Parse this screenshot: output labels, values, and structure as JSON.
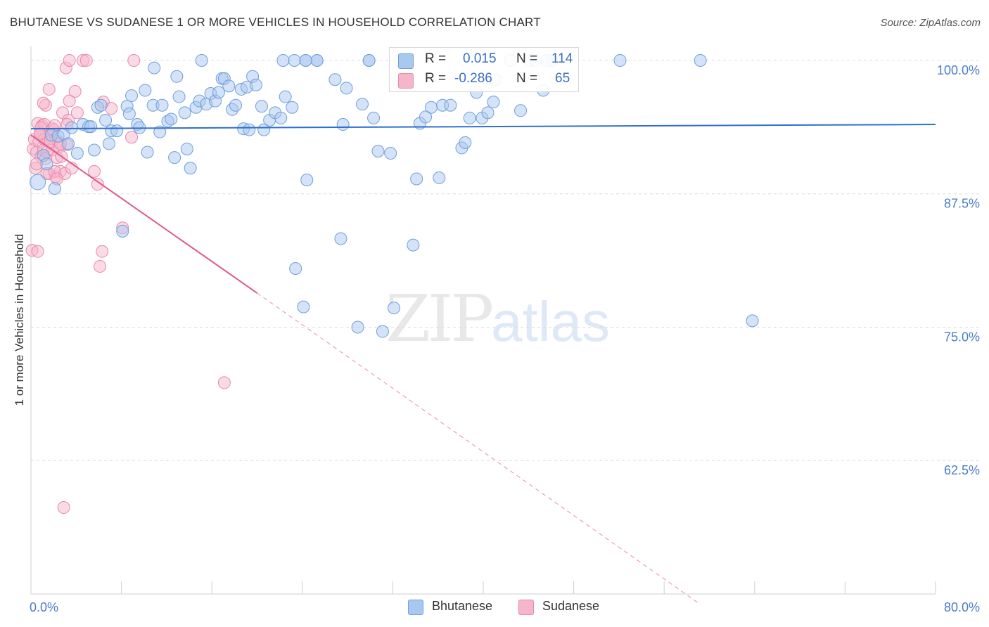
{
  "title": "BHUTANESE VS SUDANESE 1 OR MORE VEHICLES IN HOUSEHOLD CORRELATION CHART",
  "source": "Source: ZipAtlas.com",
  "watermark": {
    "zip": "ZIP",
    "atlas": "atlas"
  },
  "legend": {
    "rows": [
      {
        "r_label": "R =",
        "r_value": "0.015",
        "n_label": "N =",
        "n_value": "114",
        "color": "#a9c8f0"
      },
      {
        "r_label": "R =",
        "r_value": "-0.286",
        "n_label": "N =",
        "n_value": "65",
        "color": "#f5b6cb"
      }
    ]
  },
  "bottom_legend": [
    {
      "label": "Bhutanese",
      "color": "#a9c8f0"
    },
    {
      "label": "Sudanese",
      "color": "#f5b6cb"
    }
  ],
  "colors": {
    "blue_line": "#2f6fd0",
    "pink_line": "#e0588a",
    "blue_fill": "#a9c8f0",
    "pink_fill": "#f5b6cb",
    "grid": "#dcdcdc",
    "tick_label": "#4a7cc8"
  },
  "chart_data": {
    "type": "scatter",
    "title": "BHUTANESE VS SUDANESE 1 OR MORE VEHICLES IN HOUSEHOLD CORRELATION CHART",
    "xlabel": "",
    "ylabel": "1 or more Vehicles in Household",
    "xlim": [
      0,
      80
    ],
    "ylim": [
      50,
      102.5
    ],
    "x_tick_labels": [
      "0.0%",
      "80.0%"
    ],
    "y_ticks": [
      62.5,
      75.0,
      87.5,
      100.0
    ],
    "y_tick_labels": [
      "62.5%",
      "75.0%",
      "87.5%",
      "100.0%"
    ],
    "grid": true,
    "series": [
      {
        "name": "Bhutanese",
        "trend": {
          "x": [
            0,
            80
          ],
          "y": [
            93.6,
            94.0
          ],
          "style": "solid"
        },
        "points": [
          [
            0.6,
            88.6
          ],
          [
            1.1,
            91.1
          ],
          [
            1.4,
            90.3
          ],
          [
            1.8,
            93.0
          ],
          [
            2.1,
            88.0
          ],
          [
            2.4,
            92.9
          ],
          [
            2.9,
            93.1
          ],
          [
            3.3,
            92.2
          ],
          [
            3.6,
            93.7
          ],
          [
            4.1,
            91.3
          ],
          [
            4.6,
            94.0
          ],
          [
            5.1,
            93.8
          ],
          [
            5.3,
            93.8
          ],
          [
            5.6,
            91.6
          ],
          [
            5.9,
            95.6
          ],
          [
            6.2,
            95.8
          ],
          [
            6.6,
            94.4
          ],
          [
            6.9,
            92.2
          ],
          [
            7.1,
            93.4
          ],
          [
            7.6,
            93.4
          ],
          [
            8.1,
            84.0
          ],
          [
            8.5,
            95.7
          ],
          [
            8.7,
            95.0
          ],
          [
            8.9,
            96.7
          ],
          [
            9.4,
            94.0
          ],
          [
            9.6,
            93.7
          ],
          [
            10.3,
            91.4
          ],
          [
            10.1,
            97.2
          ],
          [
            10.8,
            95.8
          ],
          [
            10.9,
            99.3
          ],
          [
            11.4,
            93.3
          ],
          [
            11.6,
            95.8
          ],
          [
            12.1,
            94.3
          ],
          [
            12.4,
            94.5
          ],
          [
            12.7,
            90.9
          ],
          [
            12.9,
            98.5
          ],
          [
            13.1,
            96.6
          ],
          [
            13.6,
            95.1
          ],
          [
            13.8,
            91.7
          ],
          [
            14.1,
            89.9
          ],
          [
            14.6,
            95.6
          ],
          [
            14.9,
            96.2
          ],
          [
            15.1,
            100.0
          ],
          [
            15.5,
            95.9
          ],
          [
            15.9,
            96.9
          ],
          [
            16.3,
            96.2
          ],
          [
            16.6,
            97.0
          ],
          [
            16.9,
            98.3
          ],
          [
            17.1,
            98.3
          ],
          [
            17.5,
            97.6
          ],
          [
            17.8,
            95.4
          ],
          [
            18.1,
            95.8
          ],
          [
            18.6,
            97.3
          ],
          [
            18.8,
            93.6
          ],
          [
            19.1,
            97.5
          ],
          [
            19.3,
            93.5
          ],
          [
            19.6,
            98.5
          ],
          [
            19.9,
            97.7
          ],
          [
            20.4,
            95.7
          ],
          [
            20.6,
            93.5
          ],
          [
            21.1,
            94.4
          ],
          [
            21.6,
            95.1
          ],
          [
            22.1,
            94.6
          ],
          [
            22.5,
            96.6
          ],
          [
            23.1,
            95.6
          ],
          [
            23.4,
            80.5
          ],
          [
            23.3,
            100.0
          ],
          [
            24.1,
            76.9
          ],
          [
            24.4,
            88.8
          ],
          [
            25.3,
            100.0
          ],
          [
            25.3,
            100.0
          ],
          [
            26.9,
            98.2
          ],
          [
            27.4,
            83.3
          ],
          [
            27.6,
            94.0
          ],
          [
            27.9,
            97.4
          ],
          [
            28.9,
            75.0
          ],
          [
            29.3,
            95.9
          ],
          [
            30.3,
            94.6
          ],
          [
            30.7,
            91.5
          ],
          [
            31.1,
            74.6
          ],
          [
            31.8,
            91.3
          ],
          [
            32.1,
            76.8
          ],
          [
            32.6,
            100.0
          ],
          [
            33.8,
            82.7
          ],
          [
            34.1,
            88.9
          ],
          [
            34.4,
            94.1
          ],
          [
            34.9,
            94.7
          ],
          [
            35.4,
            95.6
          ],
          [
            36.1,
            89.0
          ],
          [
            36.4,
            95.8
          ],
          [
            37.1,
            95.8
          ],
          [
            38.1,
            91.8
          ],
          [
            38.4,
            92.3
          ],
          [
            38.8,
            94.6
          ],
          [
            39.4,
            97.0
          ],
          [
            39.9,
            94.6
          ],
          [
            40.4,
            95.1
          ],
          [
            40.9,
            96.1
          ],
          [
            41.1,
            98.2
          ],
          [
            42.4,
            100.0
          ],
          [
            43.3,
            95.3
          ],
          [
            44.1,
            100.0
          ],
          [
            45.3,
            97.2
          ],
          [
            45.6,
            100.0
          ],
          [
            46.1,
            100.0
          ],
          [
            52.1,
            100.0
          ],
          [
            59.2,
            100.0
          ],
          [
            63.8,
            75.6
          ],
          [
            29.9,
            100.0
          ],
          [
            29.9,
            100.0
          ],
          [
            24.3,
            100.0
          ],
          [
            24.3,
            100.0
          ],
          [
            22.3,
            100.0
          ],
          [
            44.6,
            100.0
          ]
        ]
      },
      {
        "name": "Sudanese",
        "trend": {
          "x": [
            0,
            20
          ],
          "y": [
            93.0,
            78.2
          ],
          "style": "solid",
          "dashed_extension": {
            "x": [
              20,
              59.1
            ],
            "y": [
              78.2,
              49.1
            ]
          }
        },
        "points": [
          [
            0.2,
            91.7
          ],
          [
            0.3,
            92.6
          ],
          [
            0.4,
            89.9
          ],
          [
            0.5,
            91.4
          ],
          [
            0.6,
            94.1
          ],
          [
            0.7,
            92.4
          ],
          [
            0.8,
            93.2
          ],
          [
            0.9,
            91.0
          ],
          [
            1.0,
            93.9
          ],
          [
            1.1,
            91.6
          ],
          [
            1.2,
            94.0
          ],
          [
            1.3,
            95.8
          ],
          [
            1.4,
            91.4
          ],
          [
            1.5,
            92.6
          ],
          [
            1.6,
            89.4
          ],
          [
            1.7,
            93.3
          ],
          [
            1.8,
            92.3
          ],
          [
            1.9,
            91.6
          ],
          [
            2.0,
            93.5
          ],
          [
            2.2,
            89.1
          ],
          [
            2.4,
            92.4
          ],
          [
            2.6,
            89.6
          ],
          [
            2.8,
            95.1
          ],
          [
            3.0,
            89.4
          ],
          [
            3.2,
            92.1
          ],
          [
            3.4,
            96.2
          ],
          [
            0.1,
            82.2
          ],
          [
            0.6,
            82.1
          ],
          [
            0.9,
            93.7
          ],
          [
            1.2,
            92.6
          ],
          [
            1.4,
            89.4
          ],
          [
            1.6,
            97.3
          ],
          [
            1.7,
            92.4
          ],
          [
            1.9,
            93.6
          ],
          [
            2.1,
            89.6
          ],
          [
            2.3,
            90.9
          ],
          [
            2.5,
            91.9
          ],
          [
            3.1,
            99.3
          ],
          [
            3.4,
            100.0
          ],
          [
            3.3,
            94.4
          ],
          [
            3.6,
            89.9
          ],
          [
            3.9,
            97.1
          ],
          [
            4.1,
            95.1
          ],
          [
            4.6,
            100.0
          ],
          [
            4.9,
            100.0
          ],
          [
            5.6,
            89.6
          ],
          [
            5.9,
            88.4
          ],
          [
            6.3,
            82.1
          ],
          [
            6.1,
            80.7
          ],
          [
            6.4,
            96.1
          ],
          [
            7.1,
            95.5
          ],
          [
            8.1,
            84.3
          ],
          [
            8.9,
            92.8
          ],
          [
            9.1,
            100.0
          ],
          [
            17.1,
            69.8
          ],
          [
            2.9,
            58.1
          ],
          [
            2.1,
            93.9
          ],
          [
            2.6,
            92.2
          ],
          [
            1.3,
            90.8
          ],
          [
            0.8,
            93.1
          ],
          [
            2.3,
            88.9
          ],
          [
            1.1,
            96.0
          ],
          [
            2.7,
            91.0
          ],
          [
            3.2,
            94.0
          ],
          [
            0.5,
            90.3
          ]
        ]
      }
    ]
  }
}
